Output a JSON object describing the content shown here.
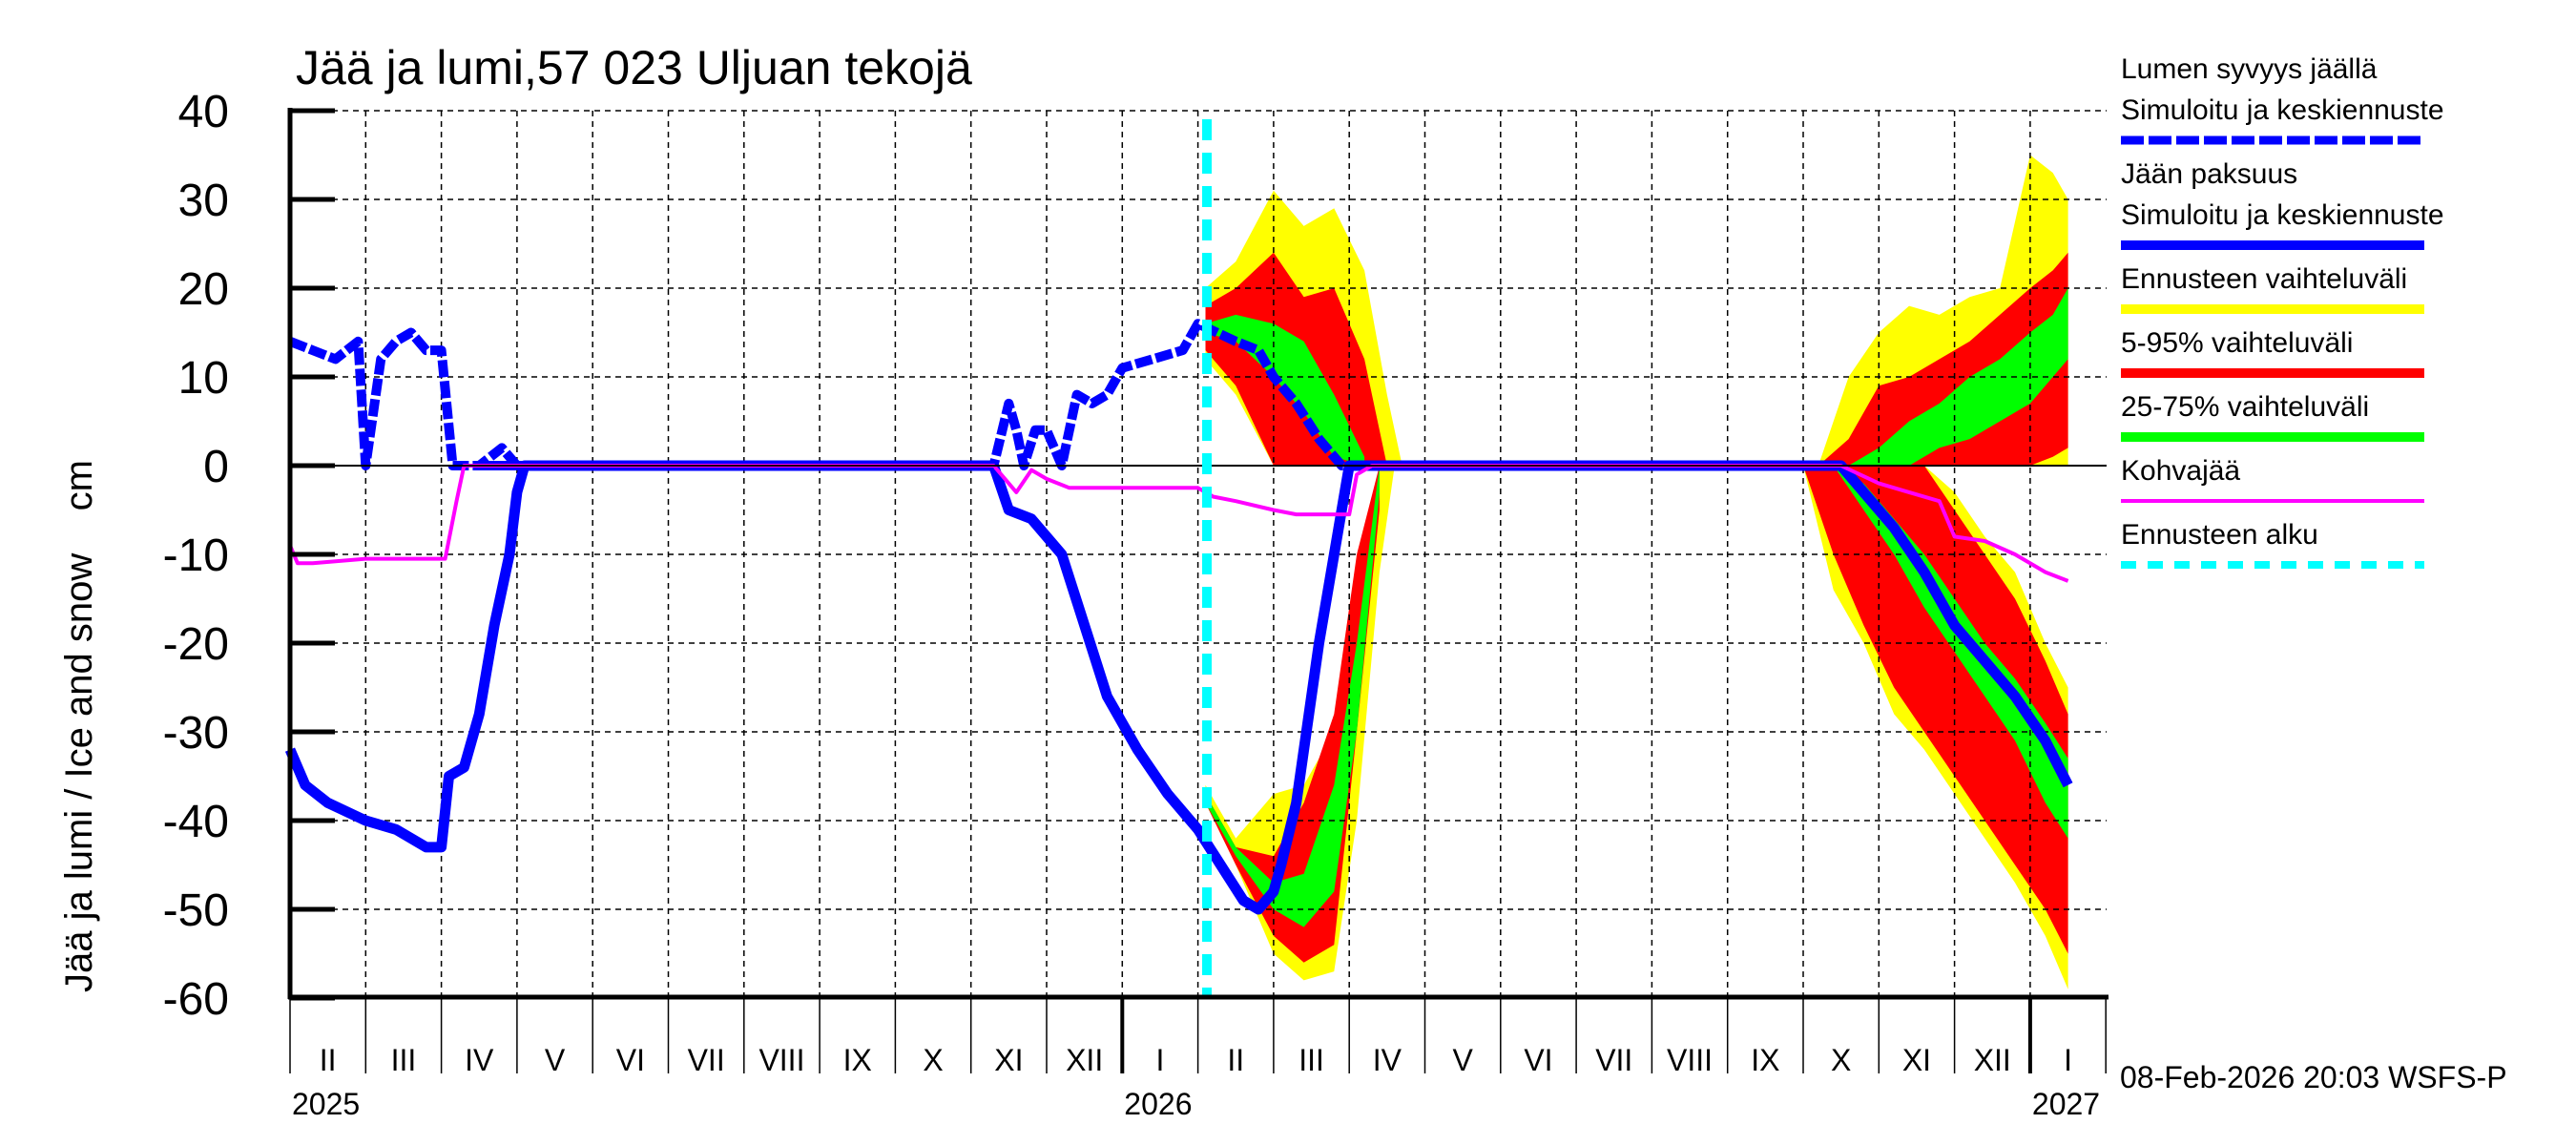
{
  "title": "Jää ja lumi,57 023 Uljuan tekojä",
  "y_axis_label": "Jää ja lumi / Ice and snow    cm",
  "timestamp": "08-Feb-2026 20:03 WSFS-P",
  "legend": {
    "items": [
      {
        "line1": "Lumen syvyys jäällä",
        "line2": "Simuloitu ja keskiennuste",
        "color": "#0000ff",
        "style": "dashed-thick"
      },
      {
        "line1": "Jään paksuus",
        "line2": "Simuloitu ja keskiennuste",
        "color": "#0000ff",
        "style": "solid-thick"
      },
      {
        "line1": "Ennusteen vaihteluväli",
        "color": "#ffff00",
        "style": "band"
      },
      {
        "line1": "5-95% vaihteluväli",
        "color": "#ff0000",
        "style": "band"
      },
      {
        "line1": "25-75% vaihteluväli",
        "color": "#00ff00",
        "style": "band"
      },
      {
        "line1": "Kohvajää",
        "color": "#ff00ff",
        "style": "solid-thin"
      },
      {
        "line1": "Ennusteen alku",
        "color": "#00ffff",
        "style": "dashed"
      }
    ]
  },
  "colors": {
    "snow": "#0000ff",
    "ice": "#0000ff",
    "range_full": "#ffff00",
    "range_5_95": "#ff0000",
    "range_25_75": "#00ff00",
    "slush_ice": "#ff00ff",
    "forecast_start": "#00ffff"
  },
  "chart_data": {
    "type": "line",
    "title": "Jää ja lumi,57 023 Uljuan tekojä",
    "xlabel": "",
    "ylabel": "Jää ja lumi / Ice and snow cm",
    "ylim": [
      -60,
      40
    ],
    "yticks": [
      40,
      30,
      20,
      10,
      0,
      -10,
      -20,
      -30,
      -40,
      -50,
      -60
    ],
    "grid": true,
    "legend_position": "right",
    "x_months": [
      "II",
      "III",
      "IV",
      "V",
      "VI",
      "VII",
      "VIII",
      "IX",
      "X",
      "XI",
      "XII",
      "I",
      "II",
      "III",
      "IV",
      "V",
      "VI",
      "VII",
      "VIII",
      "IX",
      "X",
      "XI",
      "XII",
      "I"
    ],
    "x_years": [
      {
        "label": "2025",
        "month_index": 0
      },
      {
        "label": "2026",
        "month_index": 11
      },
      {
        "label": "2027",
        "month_index": 23
      }
    ],
    "forecast_start": "2026-02-08",
    "x_unit": "months since 2025-02-01",
    "series": [
      {
        "name": "Lumen syvyys jäällä (snow depth on ice, plotted positive)",
        "x": [
          0,
          0.3,
          0.6,
          0.9,
          1.0,
          1.2,
          1.4,
          1.6,
          1.8,
          2.0,
          2.15,
          2.3,
          2.5,
          2.8,
          3.0,
          3.2,
          3.4,
          9.3,
          9.5,
          9.6,
          9.7,
          9.85,
          10.0,
          10.2,
          10.4,
          10.6,
          10.8,
          11.0,
          11.4,
          11.8,
          12.0,
          12.25,
          12.5,
          12.8,
          13.0,
          13.3,
          13.6,
          13.9,
          14.1,
          14.3,
          14.5,
          14.7,
          15
        ],
        "values": [
          14,
          13,
          12,
          14,
          0,
          12,
          14,
          15,
          13,
          13,
          0,
          0,
          0,
          2,
          0,
          0,
          0,
          0,
          7,
          4,
          0,
          4,
          4,
          0,
          8,
          7,
          8,
          11,
          12,
          13,
          16,
          15,
          14,
          13,
          10,
          7,
          3,
          0,
          0,
          0,
          0,
          0,
          0
        ]
      },
      {
        "name": "Jään paksuus (ice thickness, plotted negative)",
        "x": [
          0,
          0.2,
          0.5,
          1.0,
          1.4,
          1.8,
          2.0,
          2.1,
          2.3,
          2.5,
          2.7,
          2.9,
          3.0,
          3.1,
          9.3,
          9.5,
          9.8,
          10.2,
          10.5,
          10.8,
          11.2,
          11.6,
          12.0,
          12.3,
          12.6,
          12.8,
          13.0,
          13.1,
          13.3,
          13.6,
          14.0,
          14.4,
          14.6,
          20.5,
          20.8,
          21.2,
          21.6,
          22.0,
          22.4,
          22.8,
          23.2,
          23.5
        ],
        "values": [
          -32,
          -36,
          -38,
          -40,
          -41,
          -43,
          -43,
          -35,
          -34,
          -28,
          -18,
          -10,
          -3,
          0,
          0,
          -5,
          -6,
          -10,
          -18,
          -26,
          -32,
          -37,
          -41,
          -45,
          -49,
          -50,
          -48,
          -45,
          -38,
          -20,
          0,
          0,
          0,
          0,
          -3,
          -7,
          -12,
          -18,
          -22,
          -26,
          -31,
          -36
        ]
      },
      {
        "name": "Kohvajää (slush ice, plotted negative)",
        "x": [
          0,
          0.1,
          0.3,
          1.0,
          1.4,
          1.8,
          2.05,
          2.2,
          2.3,
          9.3,
          9.5,
          9.6,
          9.8,
          10.0,
          10.3,
          12.0,
          12.2,
          12.5,
          13.0,
          13.3,
          14.0,
          14.1,
          14.3,
          20.5,
          21.0,
          21.4,
          21.8,
          22.0,
          22.4,
          22.8,
          23.2,
          23.5
        ],
        "values": [
          -9,
          -11,
          -11,
          -10.5,
          -10.5,
          -10.5,
          -10.5,
          -4,
          0,
          0,
          -2,
          -3,
          -0.5,
          -1.5,
          -2.5,
          -2.5,
          -3.5,
          -4,
          -5,
          -5.5,
          -5.5,
          -1,
          0,
          0,
          -2,
          -3,
          -4,
          -8,
          -8.5,
          -10,
          -12,
          -13
        ]
      },
      {
        "name": "Ennusteen vaihteluväli (full forecast range) – snow",
        "x": [
          12.1,
          12.5,
          13.0,
          13.4,
          13.8,
          14.2,
          14.5,
          14.7
        ],
        "upper": [
          20,
          23,
          31,
          27,
          29,
          22,
          8,
          0
        ],
        "lower": [
          12,
          8,
          0,
          0,
          0,
          0,
          0,
          0
        ]
      },
      {
        "name": "Ennusteen vaihteluväli (full forecast range) – ice 2026",
        "x": [
          12.1,
          12.5,
          13.0,
          13.4,
          13.8,
          14.1,
          14.4,
          14.6
        ],
        "upper": [
          -36,
          -42,
          -37,
          -36,
          -30,
          -12,
          0,
          0
        ],
        "lower": [
          -38,
          -45,
          -55,
          -58,
          -57,
          -40,
          -12,
          0
        ]
      },
      {
        "name": "5-95% vaihteluväli – snow",
        "x": [
          12.1,
          12.5,
          13.0,
          13.4,
          13.8,
          14.2,
          14.5
        ],
        "upper": [
          18,
          20,
          24,
          19,
          20,
          12,
          0
        ],
        "lower": [
          13,
          9,
          0,
          0,
          0,
          0,
          0
        ]
      },
      {
        "name": "5-95% vaihteluväli – ice 2026",
        "x": [
          12.1,
          12.5,
          13.0,
          13.4,
          13.8,
          14.1,
          14.4
        ],
        "upper": [
          -37,
          -43,
          -44,
          -38,
          -28,
          -10,
          0
        ],
        "lower": [
          -38,
          -45,
          -53,
          -56,
          -54,
          -30,
          -5
        ]
      },
      {
        "name": "25-75% vaihteluväli – snow",
        "x": [
          12.1,
          12.5,
          13.0,
          13.4,
          13.8,
          14.2
        ],
        "upper": [
          16,
          17,
          16,
          14,
          8,
          1
        ],
        "lower": [
          15,
          14,
          10,
          6,
          1,
          0
        ]
      },
      {
        "name": "25-75% vaihteluväli – ice 2026",
        "x": [
          12.1,
          12.5,
          13.0,
          13.4,
          13.8,
          14.1,
          14.4
        ],
        "upper": [
          -37,
          -43,
          -47,
          -46,
          -36,
          -20,
          0
        ],
        "lower": [
          -38,
          -44,
          -50,
          -52,
          -48,
          -30,
          -3
        ]
      },
      {
        "name": "Ennusteen vaihteluväli – snow 2026/27",
        "x": [
          20.2,
          20.6,
          21.0,
          21.4,
          21.8,
          22.2,
          22.6,
          23.0,
          23.3,
          23.5
        ],
        "upper": [
          0,
          10,
          15,
          18,
          17,
          19,
          20,
          35,
          33,
          30
        ],
        "lower": [
          0,
          0,
          0,
          0,
          0,
          0,
          0,
          0,
          0,
          0
        ]
      },
      {
        "name": "5-95% vaihteluväli – snow 2026/27",
        "x": [
          20.2,
          20.6,
          21.0,
          21.4,
          21.8,
          22.2,
          22.6,
          23.0,
          23.3,
          23.5
        ],
        "upper": [
          0,
          3,
          9,
          10,
          12,
          14,
          17,
          20,
          22,
          24
        ],
        "lower": [
          0,
          0,
          0,
          0,
          0,
          0,
          0,
          0,
          1,
          2
        ]
      },
      {
        "name": "25-75% vaihteluväli – snow 2026/27",
        "x": [
          20.6,
          21.0,
          21.4,
          21.8,
          22.2,
          22.6,
          23.0,
          23.3,
          23.5
        ],
        "upper": [
          0,
          2,
          5,
          7,
          10,
          12,
          15,
          17,
          20
        ],
        "lower": [
          0,
          0,
          0,
          2,
          3,
          5,
          7,
          10,
          12
        ]
      },
      {
        "name": "Ennusteen vaihteluväli – ice 2026/27",
        "x": [
          20.0,
          20.4,
          20.8,
          21.2,
          21.6,
          22.0,
          22.4,
          22.8,
          23.2,
          23.5
        ],
        "upper": [
          0,
          0,
          0,
          0,
          0,
          -3,
          -8,
          -12,
          -20,
          -25
        ],
        "lower": [
          0,
          -14,
          -20,
          -28,
          -32,
          -37,
          -42,
          -47,
          -53,
          -59
        ]
      },
      {
        "name": "5-95% vaihteluväli – ice 2026/27",
        "x": [
          20.0,
          20.4,
          20.8,
          21.2,
          21.6,
          22.0,
          22.4,
          22.8,
          23.2,
          23.5
        ],
        "upper": [
          0,
          0,
          0,
          0,
          0,
          -5,
          -10,
          -15,
          -22,
          -28
        ],
        "lower": [
          0,
          -10,
          -18,
          -25,
          -30,
          -35,
          -40,
          -45,
          -50,
          -55
        ]
      },
      {
        "name": "25-75% vaihteluväli – ice 2026/27",
        "x": [
          20.4,
          20.8,
          21.2,
          21.6,
          22.0,
          22.4,
          22.8,
          23.2,
          23.5
        ],
        "upper": [
          0,
          -2,
          -6,
          -10,
          -15,
          -20,
          -24,
          -29,
          -33
        ],
        "lower": [
          0,
          -5,
          -10,
          -16,
          -21,
          -26,
          -31,
          -38,
          -42
        ]
      }
    ]
  }
}
